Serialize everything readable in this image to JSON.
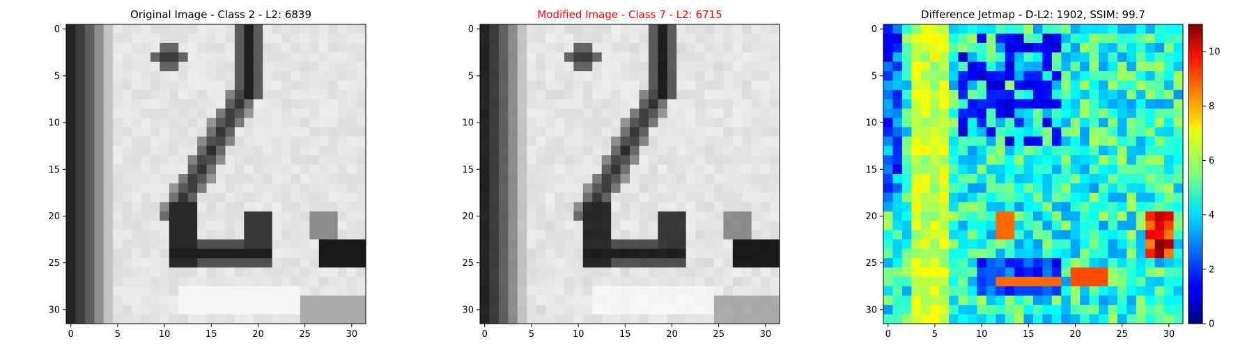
{
  "figure": {
    "panel_titles": [
      "Original Image - Class 2 - L2: 6839",
      "Modified Image - Class 7 - L2: 6715",
      "Difference Jetmap - D-L2: 1902, SSIM: 99.7"
    ]
  },
  "chart_data": [
    {
      "type": "heatmap",
      "title": "Original Image - Class 2 - L2: 6839",
      "title_color": "#000000",
      "colormap": "gray",
      "grid_size": [
        32,
        32
      ],
      "x_ticks": [
        0,
        5,
        10,
        15,
        20,
        25,
        30
      ],
      "y_ticks": [
        0,
        5,
        10,
        15,
        20,
        25,
        30
      ],
      "xlim": [
        -0.5,
        31.5
      ],
      "ylim": [
        31.5,
        -0.5
      ],
      "content": "32x32 grayscale image of a handwritten-style digit 2 on a light background, dark vertical band at the left edge, dark bar at lower right"
    },
    {
      "type": "heatmap",
      "title": "Modified Image - Class 7 - L2: 6715",
      "title_color": "#ff0000",
      "colormap": "gray",
      "grid_size": [
        32,
        32
      ],
      "x_ticks": [
        0,
        5,
        10,
        15,
        20,
        25,
        30
      ],
      "y_ticks": [
        0,
        5,
        10,
        15,
        20,
        25,
        30
      ],
      "xlim": [
        -0.5,
        31.5
      ],
      "ylim": [
        31.5,
        -0.5
      ],
      "content": "Visually near-identical to the original image"
    },
    {
      "type": "heatmap",
      "title": "Difference Jetmap - D-L2: 1902, SSIM: 99.7",
      "title_color": "#000000",
      "colormap": "jet",
      "grid_size": [
        32,
        32
      ],
      "x_ticks": [
        0,
        5,
        10,
        15,
        20,
        25,
        30
      ],
      "y_ticks": [
        0,
        5,
        10,
        15,
        20,
        25,
        30
      ],
      "xlim": [
        -0.5,
        31.5
      ],
      "ylim": [
        31.5,
        -0.5
      ],
      "colorbar": {
        "range": [
          0,
          11
        ],
        "ticks": [
          0,
          2,
          4,
          6,
          8,
          10
        ]
      },
      "content": "Per-pixel absolute difference, mostly 2-6, hot spots (8-11) near rows 20-29 at right"
    }
  ]
}
